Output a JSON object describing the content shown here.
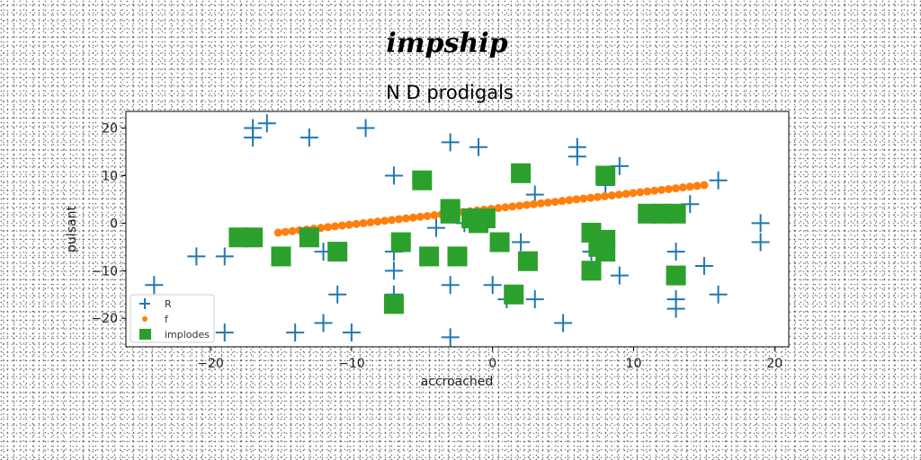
{
  "chart_data": {
    "type": "scatter",
    "suptitle": "impship",
    "title": "N D prodigals",
    "xlabel": "accroached",
    "ylabel": "pulsant",
    "xlim": [
      -26,
      21
    ],
    "ylim": [
      -26,
      23.5
    ],
    "xticks": [
      -20,
      -10,
      0,
      10,
      20
    ],
    "yticks": [
      -20,
      -10,
      0,
      10,
      20
    ],
    "grid": false,
    "legend_position": "lower-left",
    "series": [
      {
        "name": "R",
        "marker": "plus",
        "color": "#1f77b4",
        "points": [
          [
            -17,
            20
          ],
          [
            -16,
            21
          ],
          [
            -17,
            18
          ],
          [
            -13,
            18
          ],
          [
            -9,
            20
          ],
          [
            -3,
            17
          ],
          [
            -1,
            16
          ],
          [
            6,
            16
          ],
          [
            6,
            14
          ],
          [
            -7,
            10
          ],
          [
            9,
            12
          ],
          [
            8,
            8
          ],
          [
            3,
            6
          ],
          [
            16,
            9
          ],
          [
            14,
            4
          ],
          [
            19,
            0
          ],
          [
            19,
            -4
          ],
          [
            -4,
            -1
          ],
          [
            -2,
            0
          ],
          [
            -7,
            -6
          ],
          [
            -12,
            -6
          ],
          [
            -21,
            -7
          ],
          [
            -19,
            -7
          ],
          [
            2,
            -4
          ],
          [
            -7,
            -10
          ],
          [
            7,
            -6
          ],
          [
            13,
            -6
          ],
          [
            15,
            -9
          ],
          [
            9,
            -11
          ],
          [
            -3,
            -13
          ],
          [
            0,
            -13
          ],
          [
            -24,
            -13
          ],
          [
            -11,
            -15
          ],
          [
            -7,
            -15
          ],
          [
            3,
            -16
          ],
          [
            13,
            -16
          ],
          [
            16,
            -15
          ],
          [
            13,
            -18
          ],
          [
            1,
            -16
          ],
          [
            -12,
            -21
          ],
          [
            -14,
            -23
          ],
          [
            -10,
            -23
          ],
          [
            -19,
            -23
          ],
          [
            5,
            -21
          ],
          [
            -3,
            -24
          ]
        ]
      },
      {
        "name": "f",
        "marker": "dot",
        "color": "#ff7f0e",
        "line_from": [
          -15.2,
          -2
        ],
        "line_to": [
          15,
          8
        ],
        "count": 61
      },
      {
        "name": "implodes",
        "marker": "square",
        "color": "#2ca02c",
        "points": [
          [
            -18,
            -3
          ],
          [
            -17,
            -3
          ],
          [
            -15,
            -7
          ],
          [
            -13,
            -3
          ],
          [
            -11,
            -6
          ],
          [
            -7,
            -17
          ],
          [
            -6.5,
            -4
          ],
          [
            -5,
            9
          ],
          [
            -4.5,
            -7
          ],
          [
            -3,
            3
          ],
          [
            -3,
            2
          ],
          [
            -2.5,
            -7
          ],
          [
            -1.5,
            1
          ],
          [
            -1,
            0
          ],
          [
            -0.5,
            1
          ],
          [
            0.5,
            -4
          ],
          [
            1.5,
            -15
          ],
          [
            2,
            10.5
          ],
          [
            2.5,
            -8
          ],
          [
            7,
            -2
          ],
          [
            7.5,
            -5
          ],
          [
            7,
            -10
          ],
          [
            8,
            10
          ],
          [
            8,
            -3.5
          ],
          [
            8,
            -6
          ],
          [
            11,
            2
          ],
          [
            12,
            2
          ],
          [
            13,
            2
          ],
          [
            13,
            -11
          ]
        ]
      }
    ]
  }
}
